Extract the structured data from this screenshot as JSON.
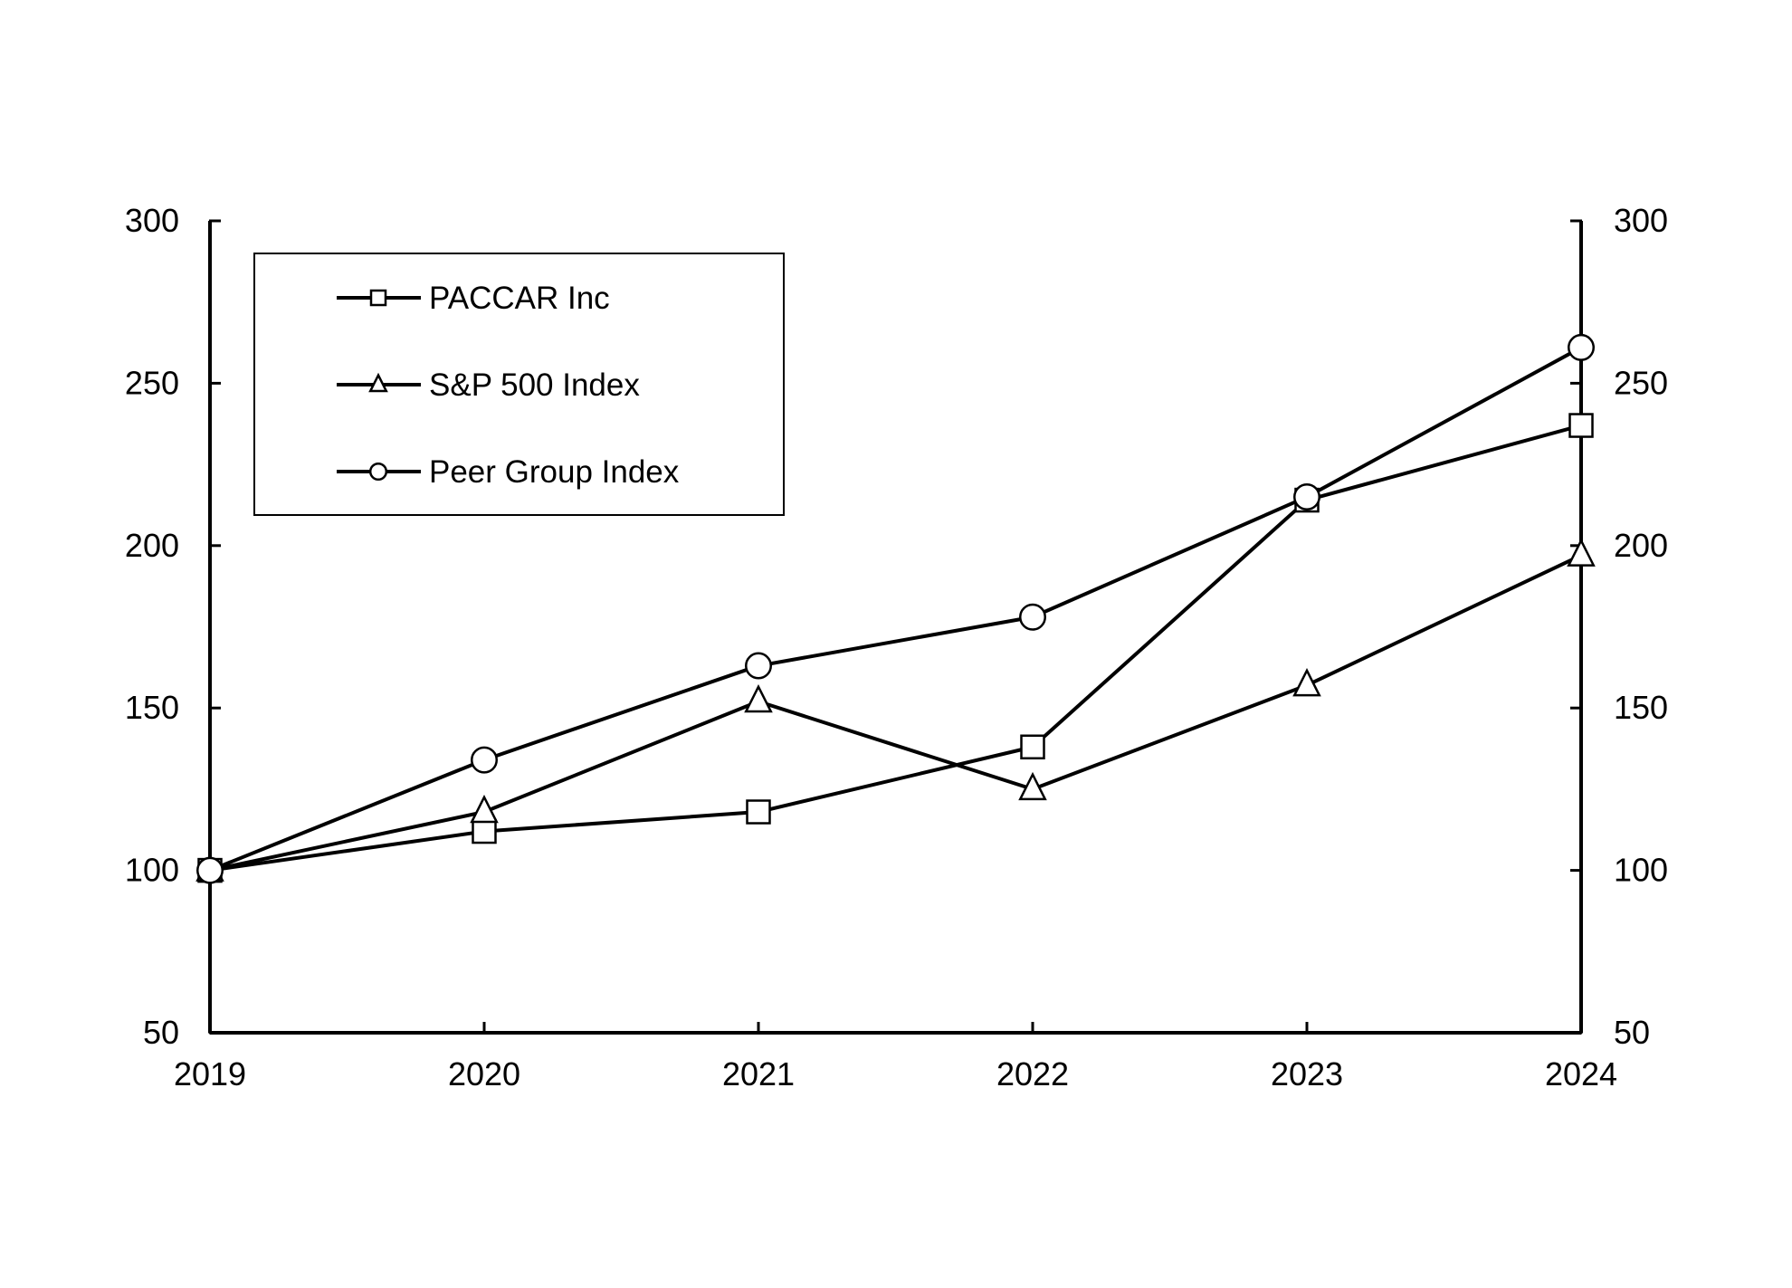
{
  "chart_data": {
    "type": "line",
    "x": [
      "2019",
      "2020",
      "2021",
      "2022",
      "2023",
      "2024"
    ],
    "ylim": [
      50,
      300
    ],
    "yticks": [
      50,
      100,
      150,
      200,
      250,
      300
    ],
    "grid": false,
    "legend_position": "top-left",
    "series": [
      {
        "name": "PACCAR Inc",
        "marker": "square",
        "values": [
          100,
          112,
          118,
          138,
          214,
          237
        ]
      },
      {
        "name": "S&P 500 Index",
        "marker": "triangle",
        "values": [
          100,
          118,
          152,
          125,
          157,
          197
        ]
      },
      {
        "name": "Peer Group Index",
        "marker": "circle",
        "values": [
          100,
          134,
          163,
          178,
          215,
          261
        ]
      }
    ],
    "colors": {
      "line": "#000000",
      "marker_fill": "#ffffff",
      "background": "#ffffff"
    }
  }
}
